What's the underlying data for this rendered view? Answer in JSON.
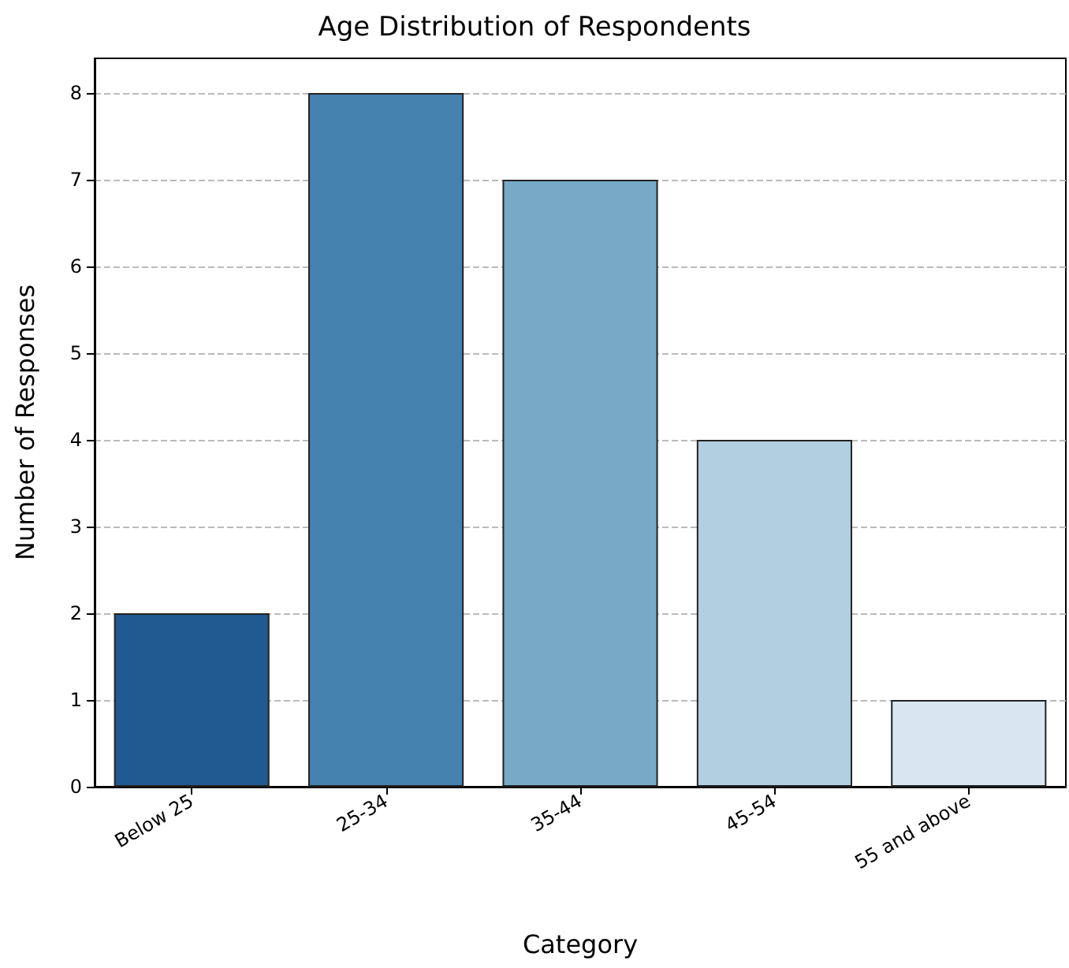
{
  "chart_data": {
    "type": "bar",
    "title": "Age Distribution of Respondents",
    "xlabel": "Category",
    "ylabel": "Number of Responses",
    "categories": [
      "Below 25",
      "25-34",
      "35-44",
      "45-54",
      "55 and above"
    ],
    "values": [
      2,
      8,
      7,
      4,
      1
    ],
    "colors": [
      "#215a90",
      "#4682b0",
      "#78aac8",
      "#b2cfe2",
      "#d9e6f1"
    ],
    "ylim": [
      0,
      8.4
    ],
    "yticks": [
      0,
      1,
      2,
      3,
      4,
      5,
      6,
      7,
      8
    ],
    "grid": "y"
  }
}
